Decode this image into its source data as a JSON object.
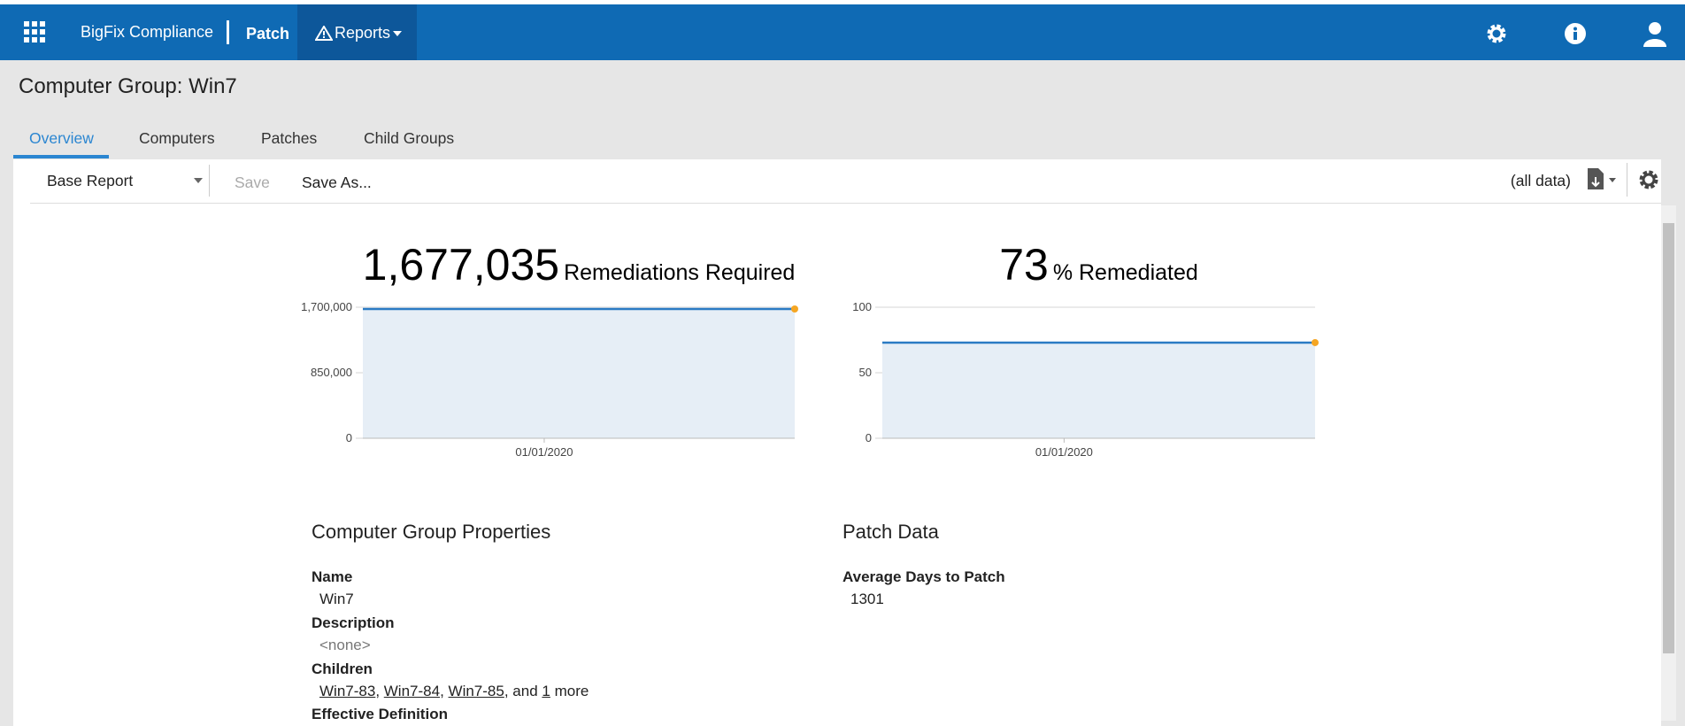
{
  "nav": {
    "brand": "BigFix Compliance",
    "app": "Patch",
    "menu": "Reports"
  },
  "page_title": "Computer Group: Win7",
  "tabs": [
    "Overview",
    "Computers",
    "Patches",
    "Child Groups"
  ],
  "toolbar": {
    "report": "Base Report",
    "save": "Save",
    "save_as": "Save As...",
    "scope": "(all data)"
  },
  "chart_data": [
    {
      "type": "area",
      "title": "Remediations Required",
      "categories": [
        "01/01/2020"
      ],
      "values": [
        1677035
      ],
      "value_labels": [
        "1,677,035"
      ],
      "ylim": [
        0,
        1700000
      ],
      "yticks": [
        0,
        {
          "value": 850000,
          "label": "850,000"
        },
        {
          "value": 1700000,
          "label": "1,700,000"
        }
      ],
      "grid": true,
      "color": "#2a7bc4",
      "marker_color": "#f5a623"
    },
    {
      "type": "area",
      "title": "% Remediated",
      "categories": [
        "01/01/2020"
      ],
      "values": [
        73
      ],
      "value_labels": [
        "73"
      ],
      "ylim": [
        0,
        100
      ],
      "yticks": [
        0,
        50,
        100
      ],
      "grid": true,
      "color": "#2a7bc4",
      "marker_color": "#f5a623"
    }
  ],
  "properties": {
    "title": "Computer Group Properties",
    "name_label": "Name",
    "name": "Win7",
    "description_label": "Description",
    "description": "<none>",
    "children_label": "Children",
    "children": [
      "Win7-83",
      "Win7-84",
      "Win7-85"
    ],
    "and": "and",
    "more_count": "1",
    "more": "more",
    "definition_label": "Effective Definition"
  },
  "patch_data": {
    "title": "Patch Data",
    "avg_label": "Average Days to Patch",
    "avg": "1301"
  }
}
